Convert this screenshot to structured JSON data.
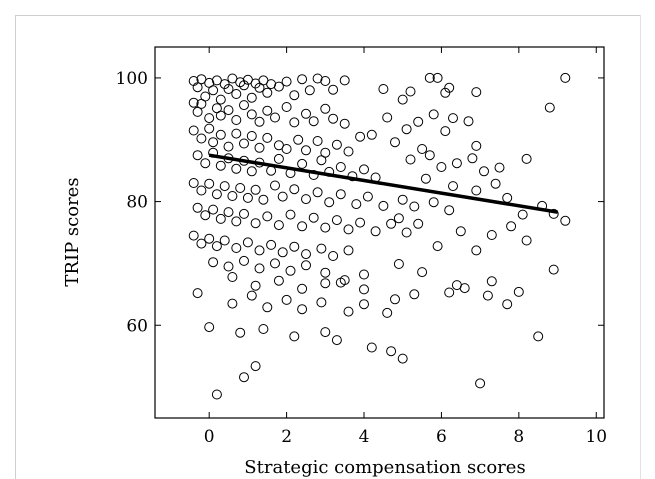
{
  "chart_data": {
    "type": "scatter",
    "title": "",
    "xlabel": "Strategic compensation scores",
    "ylabel": "TRIP scores",
    "xlim": [
      -1.4,
      10.2
    ],
    "ylim": [
      45,
      105
    ],
    "xticks": [
      0,
      2,
      4,
      6,
      8,
      10
    ],
    "yticks": [
      60,
      80,
      100
    ],
    "grid": false,
    "legend": "none",
    "marker": "open-circle",
    "trend_line": {
      "x": [
        0.0,
        9.0
      ],
      "y": [
        87.5,
        78.3
      ]
    },
    "points": [
      [
        -0.4,
        99.5
      ],
      [
        -0.3,
        98.5
      ],
      [
        -0.2,
        99.8
      ],
      [
        -0.1,
        97.0
      ],
      [
        0.0,
        99.2
      ],
      [
        0.1,
        98.0
      ],
      [
        0.2,
        99.6
      ],
      [
        0.3,
        96.5
      ],
      [
        0.4,
        99.0
      ],
      [
        0.5,
        98.2
      ],
      [
        0.6,
        99.9
      ],
      [
        0.7,
        97.4
      ],
      [
        0.8,
        99.3
      ],
      [
        0.9,
        98.8
      ],
      [
        1.0,
        99.7
      ],
      [
        1.1,
        96.8
      ],
      [
        1.2,
        99.1
      ],
      [
        1.3,
        98.4
      ],
      [
        1.4,
        99.6
      ],
      [
        1.5,
        97.6
      ],
      [
        1.6,
        99.0
      ],
      [
        1.8,
        98.6
      ],
      [
        2.0,
        99.4
      ],
      [
        2.2,
        97.2
      ],
      [
        2.4,
        99.8
      ],
      [
        2.6,
        98.0
      ],
      [
        2.8,
        99.9
      ],
      [
        3.0,
        99.5
      ],
      [
        3.2,
        98.1
      ],
      [
        3.5,
        99.6
      ],
      [
        -0.4,
        96.0
      ],
      [
        -0.3,
        94.5
      ],
      [
        -0.2,
        95.8
      ],
      [
        0.0,
        93.5
      ],
      [
        0.2,
        95.1
      ],
      [
        0.3,
        93.9
      ],
      [
        0.5,
        94.8
      ],
      [
        0.7,
        93.2
      ],
      [
        0.9,
        95.6
      ],
      [
        1.1,
        94.1
      ],
      [
        1.3,
        92.9
      ],
      [
        1.5,
        94.7
      ],
      [
        1.7,
        93.6
      ],
      [
        2.0,
        95.3
      ],
      [
        2.2,
        92.8
      ],
      [
        2.5,
        94.2
      ],
      [
        2.7,
        93.0
      ],
      [
        3.0,
        95.0
      ],
      [
        3.2,
        93.4
      ],
      [
        3.5,
        92.6
      ],
      [
        -0.4,
        91.5
      ],
      [
        -0.2,
        90.2
      ],
      [
        0.0,
        91.8
      ],
      [
        0.1,
        89.6
      ],
      [
        0.3,
        90.8
      ],
      [
        0.5,
        88.9
      ],
      [
        0.7,
        91.0
      ],
      [
        0.9,
        89.4
      ],
      [
        1.1,
        90.6
      ],
      [
        1.3,
        88.7
      ],
      [
        1.5,
        90.3
      ],
      [
        1.8,
        89.1
      ],
      [
        2.0,
        88.5
      ],
      [
        2.3,
        90.0
      ],
      [
        2.5,
        88.3
      ],
      [
        2.8,
        89.8
      ],
      [
        3.0,
        87.9
      ],
      [
        3.3,
        89.2
      ],
      [
        3.6,
        88.1
      ],
      [
        3.9,
        90.5
      ],
      [
        -0.3,
        87.5
      ],
      [
        -0.1,
        86.2
      ],
      [
        0.1,
        87.9
      ],
      [
        0.3,
        85.8
      ],
      [
        0.5,
        87.0
      ],
      [
        0.7,
        85.3
      ],
      [
        0.9,
        86.6
      ],
      [
        1.1,
        84.9
      ],
      [
        1.3,
        86.3
      ],
      [
        1.6,
        85.0
      ],
      [
        1.8,
        86.9
      ],
      [
        2.1,
        84.6
      ],
      [
        2.4,
        86.1
      ],
      [
        2.7,
        84.3
      ],
      [
        2.9,
        86.7
      ],
      [
        3.1,
        84.8
      ],
      [
        3.4,
        85.6
      ],
      [
        3.7,
        84.1
      ],
      [
        4.0,
        85.2
      ],
      [
        4.3,
        83.9
      ],
      [
        -0.4,
        83.0
      ],
      [
        -0.2,
        81.8
      ],
      [
        0.0,
        82.9
      ],
      [
        0.2,
        81.2
      ],
      [
        0.4,
        82.5
      ],
      [
        0.6,
        80.9
      ],
      [
        0.8,
        82.2
      ],
      [
        1.0,
        80.6
      ],
      [
        1.2,
        81.9
      ],
      [
        1.4,
        80.3
      ],
      [
        1.7,
        82.6
      ],
      [
        1.9,
        80.8
      ],
      [
        2.2,
        82.0
      ],
      [
        2.5,
        80.4
      ],
      [
        2.8,
        81.5
      ],
      [
        3.1,
        79.9
      ],
      [
        3.4,
        81.2
      ],
      [
        3.8,
        79.6
      ],
      [
        4.1,
        80.8
      ],
      [
        4.5,
        79.3
      ],
      [
        -0.3,
        79.0
      ],
      [
        -0.1,
        77.8
      ],
      [
        0.1,
        78.7
      ],
      [
        0.3,
        77.2
      ],
      [
        0.5,
        78.3
      ],
      [
        0.7,
        76.8
      ],
      [
        0.9,
        78.0
      ],
      [
        1.2,
        76.5
      ],
      [
        1.5,
        77.6
      ],
      [
        1.8,
        76.2
      ],
      [
        2.1,
        77.9
      ],
      [
        2.4,
        76.0
      ],
      [
        2.7,
        77.4
      ],
      [
        3.0,
        75.8
      ],
      [
        3.3,
        77.0
      ],
      [
        3.6,
        75.5
      ],
      [
        3.9,
        76.6
      ],
      [
        4.3,
        75.2
      ],
      [
        4.7,
        76.4
      ],
      [
        5.1,
        75.0
      ],
      [
        -0.4,
        74.5
      ],
      [
        -0.2,
        73.2
      ],
      [
        0.0,
        74.0
      ],
      [
        0.2,
        72.8
      ],
      [
        0.4,
        73.7
      ],
      [
        0.7,
        72.5
      ],
      [
        1.0,
        73.4
      ],
      [
        1.3,
        72.1
      ],
      [
        1.6,
        73.0
      ],
      [
        1.9,
        71.8
      ],
      [
        2.2,
        72.7
      ],
      [
        2.5,
        71.5
      ],
      [
        2.9,
        72.4
      ],
      [
        3.2,
        71.2
      ],
      [
        3.6,
        72.1
      ],
      [
        0.1,
        70.2
      ],
      [
        0.5,
        69.5
      ],
      [
        0.9,
        70.4
      ],
      [
        1.3,
        69.2
      ],
      [
        1.7,
        70.0
      ],
      [
        2.1,
        68.8
      ],
      [
        2.5,
        69.7
      ],
      [
        3.0,
        68.5
      ],
      [
        3.5,
        67.3
      ],
      [
        4.0,
        68.2
      ],
      [
        0.6,
        67.8
      ],
      [
        1.2,
        66.4
      ],
      [
        1.8,
        67.2
      ],
      [
        2.4,
        65.9
      ],
      [
        3.0,
        66.8
      ],
      [
        -0.3,
        65.2
      ],
      [
        0.6,
        63.5
      ],
      [
        1.1,
        64.8
      ],
      [
        1.5,
        62.9
      ],
      [
        2.0,
        64.1
      ],
      [
        2.4,
        62.6
      ],
      [
        2.9,
        63.7
      ],
      [
        3.6,
        62.2
      ],
      [
        4.0,
        63.4
      ],
      [
        4.6,
        62.0
      ],
      [
        0.0,
        59.7
      ],
      [
        0.8,
        58.8
      ],
      [
        1.4,
        59.4
      ],
      [
        2.2,
        58.2
      ],
      [
        3.0,
        58.9
      ],
      [
        3.3,
        57.6
      ],
      [
        4.2,
        56.4
      ],
      [
        4.7,
        55.8
      ],
      [
        5.0,
        54.6
      ],
      [
        1.2,
        53.4
      ],
      [
        0.9,
        51.6
      ],
      [
        0.2,
        48.8
      ],
      [
        7.0,
        50.6
      ],
      [
        4.5,
        98.2
      ],
      [
        5.0,
        96.5
      ],
      [
        5.2,
        97.8
      ],
      [
        5.7,
        100.0
      ],
      [
        5.9,
        100.0
      ],
      [
        6.1,
        97.6
      ],
      [
        6.2,
        98.4
      ],
      [
        6.9,
        97.7
      ],
      [
        8.8,
        95.2
      ],
      [
        9.2,
        100.0
      ],
      [
        4.6,
        93.6
      ],
      [
        5.1,
        91.7
      ],
      [
        5.4,
        92.9
      ],
      [
        5.8,
        94.1
      ],
      [
        6.3,
        93.5
      ],
      [
        6.7,
        93.0
      ],
      [
        4.2,
        90.8
      ],
      [
        4.8,
        89.6
      ],
      [
        5.5,
        88.5
      ],
      [
        6.1,
        91.4
      ],
      [
        6.9,
        89.0
      ],
      [
        5.2,
        86.8
      ],
      [
        5.7,
        87.5
      ],
      [
        6.0,
        85.6
      ],
      [
        6.4,
        86.2
      ],
      [
        6.8,
        87.0
      ],
      [
        7.1,
        84.9
      ],
      [
        7.5,
        85.5
      ],
      [
        8.2,
        86.9
      ],
      [
        5.6,
        83.7
      ],
      [
        6.3,
        82.5
      ],
      [
        6.9,
        81.8
      ],
      [
        7.4,
        82.9
      ],
      [
        7.7,
        80.6
      ],
      [
        5.0,
        80.3
      ],
      [
        5.3,
        79.2
      ],
      [
        5.8,
        79.9
      ],
      [
        6.2,
        78.6
      ],
      [
        4.9,
        77.3
      ],
      [
        5.4,
        76.4
      ],
      [
        6.5,
        75.2
      ],
      [
        7.3,
        74.6
      ],
      [
        7.8,
        76.0
      ],
      [
        8.1,
        77.9
      ],
      [
        8.6,
        79.3
      ],
      [
        9.2,
        76.9
      ],
      [
        8.9,
        78.0
      ],
      [
        8.2,
        73.7
      ],
      [
        5.9,
        72.8
      ],
      [
        6.9,
        72.1
      ],
      [
        4.9,
        69.9
      ],
      [
        5.5,
        68.6
      ],
      [
        6.4,
        66.5
      ],
      [
        7.3,
        67.1
      ],
      [
        8.0,
        65.4
      ],
      [
        8.9,
        69.0
      ],
      [
        5.3,
        65.0
      ],
      [
        6.2,
        65.3
      ],
      [
        6.6,
        66.0
      ],
      [
        7.2,
        64.8
      ],
      [
        7.7,
        63.4
      ],
      [
        8.5,
        58.2
      ],
      [
        4.8,
        64.2
      ],
      [
        4.0,
        65.8
      ],
      [
        3.4,
        66.9
      ]
    ]
  }
}
